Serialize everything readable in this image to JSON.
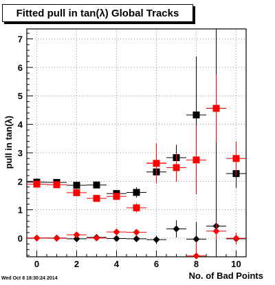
{
  "title": "Fitted pull in tan(λ)  Global Tracks",
  "timestamp": "Wed Oct  8 18:30:24 2014",
  "chart_data": {
    "type": "scatter",
    "title": "Fitted pull in tan(λ)  Global Tracks",
    "xlabel": "No. of Bad Points",
    "ylabel": "pull in tan(λ)",
    "xlim": [
      -0.5,
      10.5
    ],
    "ylim": [
      -0.65,
      7.35
    ],
    "grid": true,
    "x_ticks": [
      0,
      2,
      4,
      6,
      8,
      10
    ],
    "y_ticks": [
      0,
      1,
      2,
      3,
      4,
      5,
      6,
      7
    ],
    "colors": {
      "black": "#000000",
      "red": "#ff0000"
    },
    "series": [
      {
        "marker": "square",
        "color": "#000000",
        "points": [
          {
            "x": 0,
            "y": 1.97,
            "err": 0.05
          },
          {
            "x": 1,
            "y": 1.96,
            "err": 0.06
          },
          {
            "x": 2,
            "y": 1.86,
            "err": 0.08
          },
          {
            "x": 3,
            "y": 1.87,
            "err": 0.1
          },
          {
            "x": 4,
            "y": 1.57,
            "err": 0.12
          },
          {
            "x": 5,
            "y": 1.61,
            "err": 0.18
          },
          {
            "x": 6,
            "y": 2.33,
            "err": 0.28
          },
          {
            "x": 7,
            "y": 2.83,
            "err": 0.45
          },
          {
            "x": 8,
            "y": 4.33,
            "err": 2.05
          },
          {
            "x": 9,
            "y": 4.56,
            "err": 5.3
          },
          {
            "x": 10,
            "y": 2.27,
            "err": 0.5
          }
        ]
      },
      {
        "marker": "square",
        "color": "#ff0000",
        "points": [
          {
            "x": 0,
            "y": 1.9,
            "err": 0.05
          },
          {
            "x": 1,
            "y": 1.88,
            "err": 0.06
          },
          {
            "x": 2,
            "y": 1.6,
            "err": 0.08
          },
          {
            "x": 3,
            "y": 1.4,
            "err": 0.1
          },
          {
            "x": 4,
            "y": 1.47,
            "err": 0.12
          },
          {
            "x": 5,
            "y": 1.07,
            "err": 0.16
          },
          {
            "x": 6,
            "y": 2.63,
            "err": 0.7
          },
          {
            "x": 7,
            "y": 2.48,
            "err": 0.5
          },
          {
            "x": 8,
            "y": 2.75,
            "err": 1.2
          },
          {
            "x": 9,
            "y": 4.56,
            "err": 1.2
          },
          {
            "x": 10,
            "y": 2.8,
            "err": 0.6
          }
        ]
      },
      {
        "marker": "diamond",
        "color": "#000000",
        "points": [
          {
            "x": 0,
            "y": 0.01,
            "err": 0.03
          },
          {
            "x": 1,
            "y": 0.01,
            "err": 0.04
          },
          {
            "x": 2,
            "y": -0.02,
            "err": 0.05
          },
          {
            "x": 3,
            "y": 0.03,
            "err": 0.06
          },
          {
            "x": 4,
            "y": -0.01,
            "err": 0.07
          },
          {
            "x": 5,
            "y": -0.02,
            "err": 0.1
          },
          {
            "x": 6,
            "y": -0.05,
            "err": 0.15
          },
          {
            "x": 7,
            "y": 0.33,
            "err": 0.3
          },
          {
            "x": 8,
            "y": -0.03,
            "err": 0.6
          },
          {
            "x": 9,
            "y": 0.43,
            "err": 0.5
          },
          {
            "x": 10,
            "y": -0.02,
            "err": 0.2
          }
        ]
      },
      {
        "marker": "diamond",
        "color": "#ff0000",
        "points": [
          {
            "x": 0,
            "y": 0.01,
            "err": 0.03
          },
          {
            "x": 1,
            "y": 0.0,
            "err": 0.04
          },
          {
            "x": 2,
            "y": 0.12,
            "err": 0.05
          },
          {
            "x": 3,
            "y": 0.01,
            "err": 0.06
          },
          {
            "x": 4,
            "y": 0.22,
            "err": 0.07
          },
          {
            "x": 5,
            "y": 0.21,
            "err": 0.1
          },
          {
            "x": 6,
            "y": 2.64,
            "err": 0.15
          },
          {
            "x": 7,
            "y": 2.48,
            "err": 0.2
          },
          {
            "x": 8,
            "y": -0.62,
            "err": 0.5
          },
          {
            "x": 9,
            "y": 0.25,
            "err": 0.3
          },
          {
            "x": 10,
            "y": 0.0,
            "err": 0.2
          }
        ]
      }
    ]
  }
}
